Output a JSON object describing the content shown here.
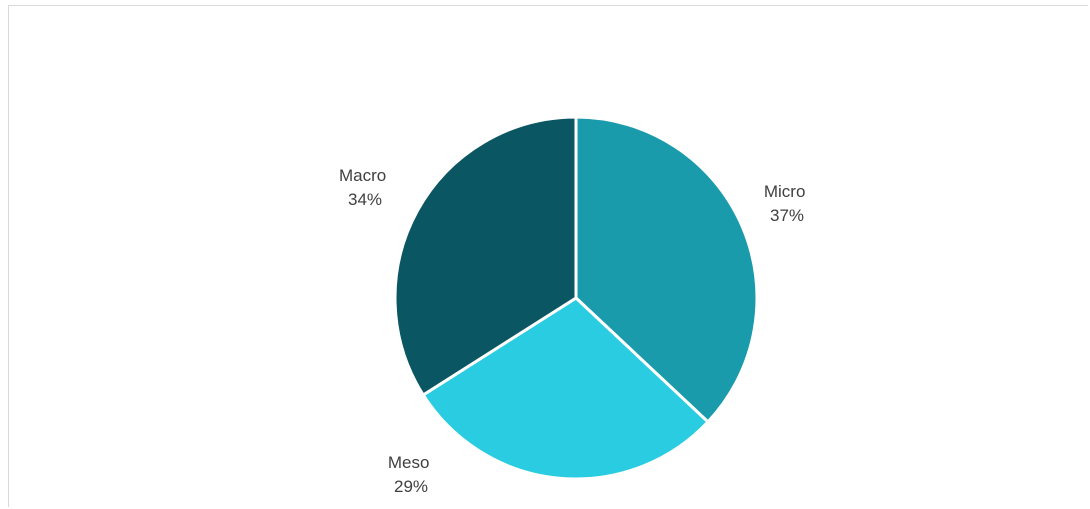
{
  "chart_data": {
    "type": "pie",
    "title": "",
    "slices": [
      {
        "label": "Micro",
        "percent_label": "37%",
        "value": 37,
        "color": "#1a9bab"
      },
      {
        "label": "Meso",
        "percent_label": "29%",
        "value": 29,
        "color": "#29cce0"
      },
      {
        "label": "Macro",
        "percent_label": "34%",
        "value": 34,
        "color": "#0b5663"
      }
    ],
    "start_angle_deg": 0,
    "direction": "clockwise",
    "legend": "none"
  }
}
